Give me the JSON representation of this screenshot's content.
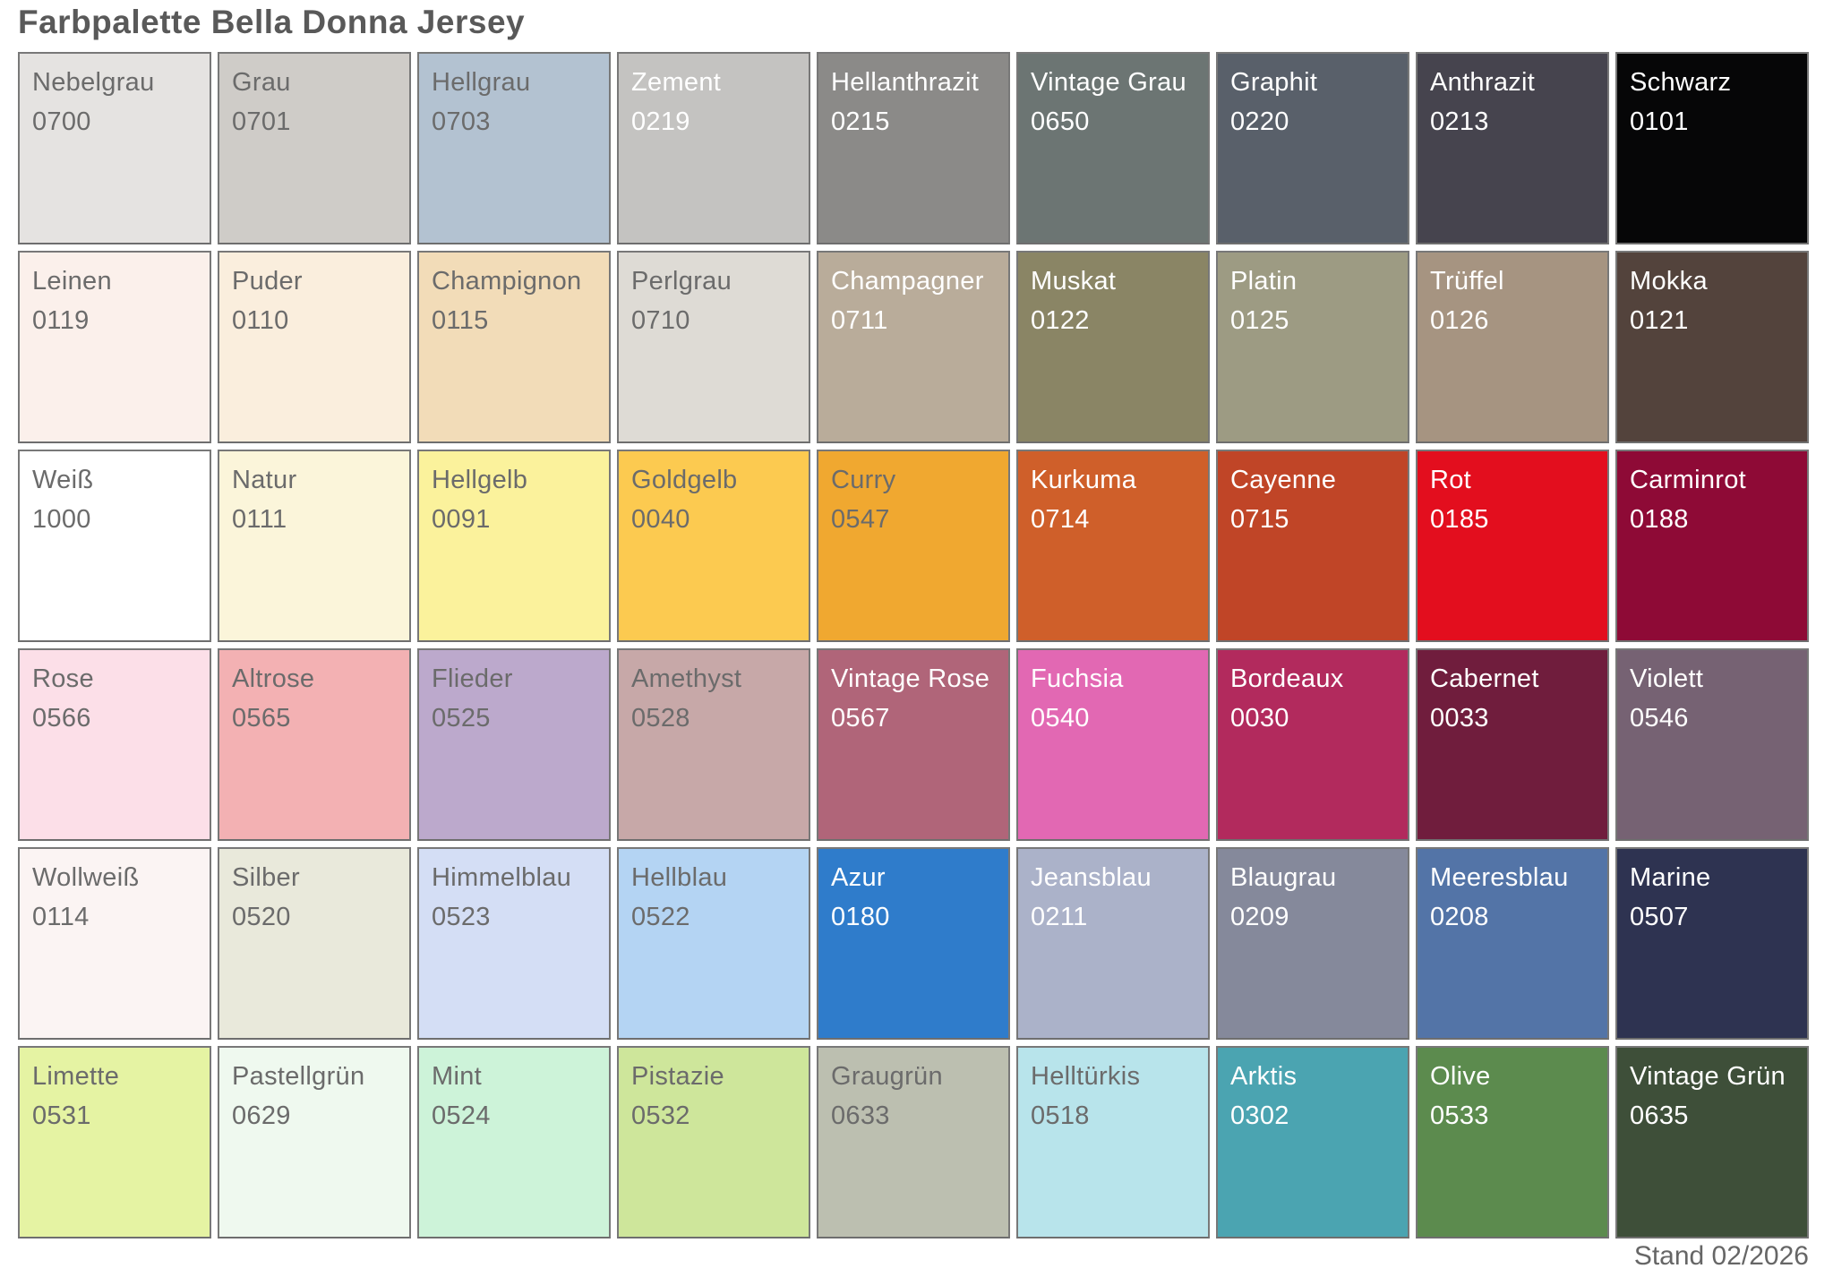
{
  "title": "Farbpalette Bella Donna Jersey",
  "footer": "Stand 02/2026",
  "label_colors": {
    "dark": "#6b6b6b",
    "light": "#ffffff"
  },
  "palette": {
    "columns": 9,
    "rows": 6,
    "swatches": [
      {
        "name": "Nebelgrau",
        "code": "0700",
        "color": "#e5e3e1",
        "label": "dark"
      },
      {
        "name": "Grau",
        "code": "0701",
        "color": "#cfccc8",
        "label": "dark"
      },
      {
        "name": "Hellgrau",
        "code": "0703",
        "color": "#b3c2d1",
        "label": "dark"
      },
      {
        "name": "Zement",
        "code": "0219",
        "color": "#c4c3c1",
        "label": "light"
      },
      {
        "name": "Hellanthrazit",
        "code": "0215",
        "color": "#8b8a88",
        "label": "light"
      },
      {
        "name": "Vintage Grau",
        "code": "0650",
        "color": "#6c7573",
        "label": "light"
      },
      {
        "name": "Graphit",
        "code": "0220",
        "color": "#59606a",
        "label": "light"
      },
      {
        "name": "Anthrazit",
        "code": "0213",
        "color": "#46444e",
        "label": "light"
      },
      {
        "name": "Schwarz",
        "code": "0101",
        "color": "#060607",
        "label": "light"
      },
      {
        "name": "Leinen",
        "code": "0119",
        "color": "#fbf0eb",
        "label": "dark"
      },
      {
        "name": "Puder",
        "code": "0110",
        "color": "#faeedd",
        "label": "dark"
      },
      {
        "name": "Champignon",
        "code": "0115",
        "color": "#f2dcb8",
        "label": "dark"
      },
      {
        "name": "Perlgrau",
        "code": "0710",
        "color": "#dedbd5",
        "label": "dark"
      },
      {
        "name": "Champagner",
        "code": "0711",
        "color": "#b9ac9a",
        "label": "light"
      },
      {
        "name": "Muskat",
        "code": "0122",
        "color": "#8a8565",
        "label": "light"
      },
      {
        "name": "Platin",
        "code": "0125",
        "color": "#9d9b83",
        "label": "light"
      },
      {
        "name": "Trüffel",
        "code": "0126",
        "color": "#a69481",
        "label": "light"
      },
      {
        "name": "Mokka",
        "code": "0121",
        "color": "#53433c",
        "label": "light"
      },
      {
        "name": "Weiß",
        "code": "1000",
        "color": "#ffffff",
        "label": "dark"
      },
      {
        "name": "Natur",
        "code": "0111",
        "color": "#fbf5da",
        "label": "dark"
      },
      {
        "name": "Hellgelb",
        "code": "0091",
        "color": "#fbf29c",
        "label": "dark"
      },
      {
        "name": "Goldgelb",
        "code": "0040",
        "color": "#fcca50",
        "label": "dark"
      },
      {
        "name": "Curry",
        "code": "0547",
        "color": "#f0a830",
        "label": "dark"
      },
      {
        "name": "Kurkuma",
        "code": "0714",
        "color": "#cf5f2a",
        "label": "light"
      },
      {
        "name": "Cayenne",
        "code": "0715",
        "color": "#c04527",
        "label": "light"
      },
      {
        "name": "Rot",
        "code": "0185",
        "color": "#e30e1e",
        "label": "light"
      },
      {
        "name": "Carminrot",
        "code": "0188",
        "color": "#8e0a36",
        "label": "light"
      },
      {
        "name": "Rose",
        "code": "0566",
        "color": "#fcdfe8",
        "label": "dark"
      },
      {
        "name": "Altrose",
        "code": "0565",
        "color": "#f3b1b3",
        "label": "dark"
      },
      {
        "name": "Flieder",
        "code": "0525",
        "color": "#bca9cc",
        "label": "dark"
      },
      {
        "name": "Amethyst",
        "code": "0528",
        "color": "#c7a8a8",
        "label": "dark"
      },
      {
        "name": "Vintage Rose",
        "code": "0567",
        "color": "#b06579",
        "label": "light"
      },
      {
        "name": "Fuchsia",
        "code": "0540",
        "color": "#e268b3",
        "label": "light"
      },
      {
        "name": "Bordeaux",
        "code": "0030",
        "color": "#b22a5d",
        "label": "light"
      },
      {
        "name": "Cabernet",
        "code": "0033",
        "color": "#701d3d",
        "label": "light"
      },
      {
        "name": "Violett",
        "code": "0546",
        "color": "#766273",
        "label": "light"
      },
      {
        "name": "Wollweiß",
        "code": "0114",
        "color": "#fbf4f3",
        "label": "dark"
      },
      {
        "name": "Silber",
        "code": "0520",
        "color": "#e9e9db",
        "label": "dark"
      },
      {
        "name": "Himmelblau",
        "code": "0523",
        "color": "#d4def5",
        "label": "dark"
      },
      {
        "name": "Hellblau",
        "code": "0522",
        "color": "#b4d4f3",
        "label": "dark"
      },
      {
        "name": "Azur",
        "code": "0180",
        "color": "#2f7ccb",
        "label": "light"
      },
      {
        "name": "Jeansblau",
        "code": "0211",
        "color": "#abb2c9",
        "label": "light"
      },
      {
        "name": "Blaugrau",
        "code": "0209",
        "color": "#85899b",
        "label": "light"
      },
      {
        "name": "Meeresblau",
        "code": "0208",
        "color": "#5374a7",
        "label": "light"
      },
      {
        "name": "Marine",
        "code": "0507",
        "color": "#2e3351",
        "label": "light"
      },
      {
        "name": "Limette",
        "code": "0531",
        "color": "#e5f3a3",
        "label": "dark"
      },
      {
        "name": "Pastellgrün",
        "code": "0629",
        "color": "#eff9ef",
        "label": "dark"
      },
      {
        "name": "Mint",
        "code": "0524",
        "color": "#cdf3d9",
        "label": "dark"
      },
      {
        "name": "Pistazie",
        "code": "0532",
        "color": "#cee69b",
        "label": "dark"
      },
      {
        "name": "Graugrün",
        "code": "0633",
        "color": "#bcbfb0",
        "label": "dark"
      },
      {
        "name": "Helltürkis",
        "code": "0518",
        "color": "#b8e4eb",
        "label": "dark"
      },
      {
        "name": "Arktis",
        "code": "0302",
        "color": "#4ba4b1",
        "label": "light"
      },
      {
        "name": "Olive",
        "code": "0533",
        "color": "#5c8b4e",
        "label": "light"
      },
      {
        "name": "Vintage Grün",
        "code": "0635",
        "color": "#3e4f39",
        "label": "light"
      }
    ]
  }
}
